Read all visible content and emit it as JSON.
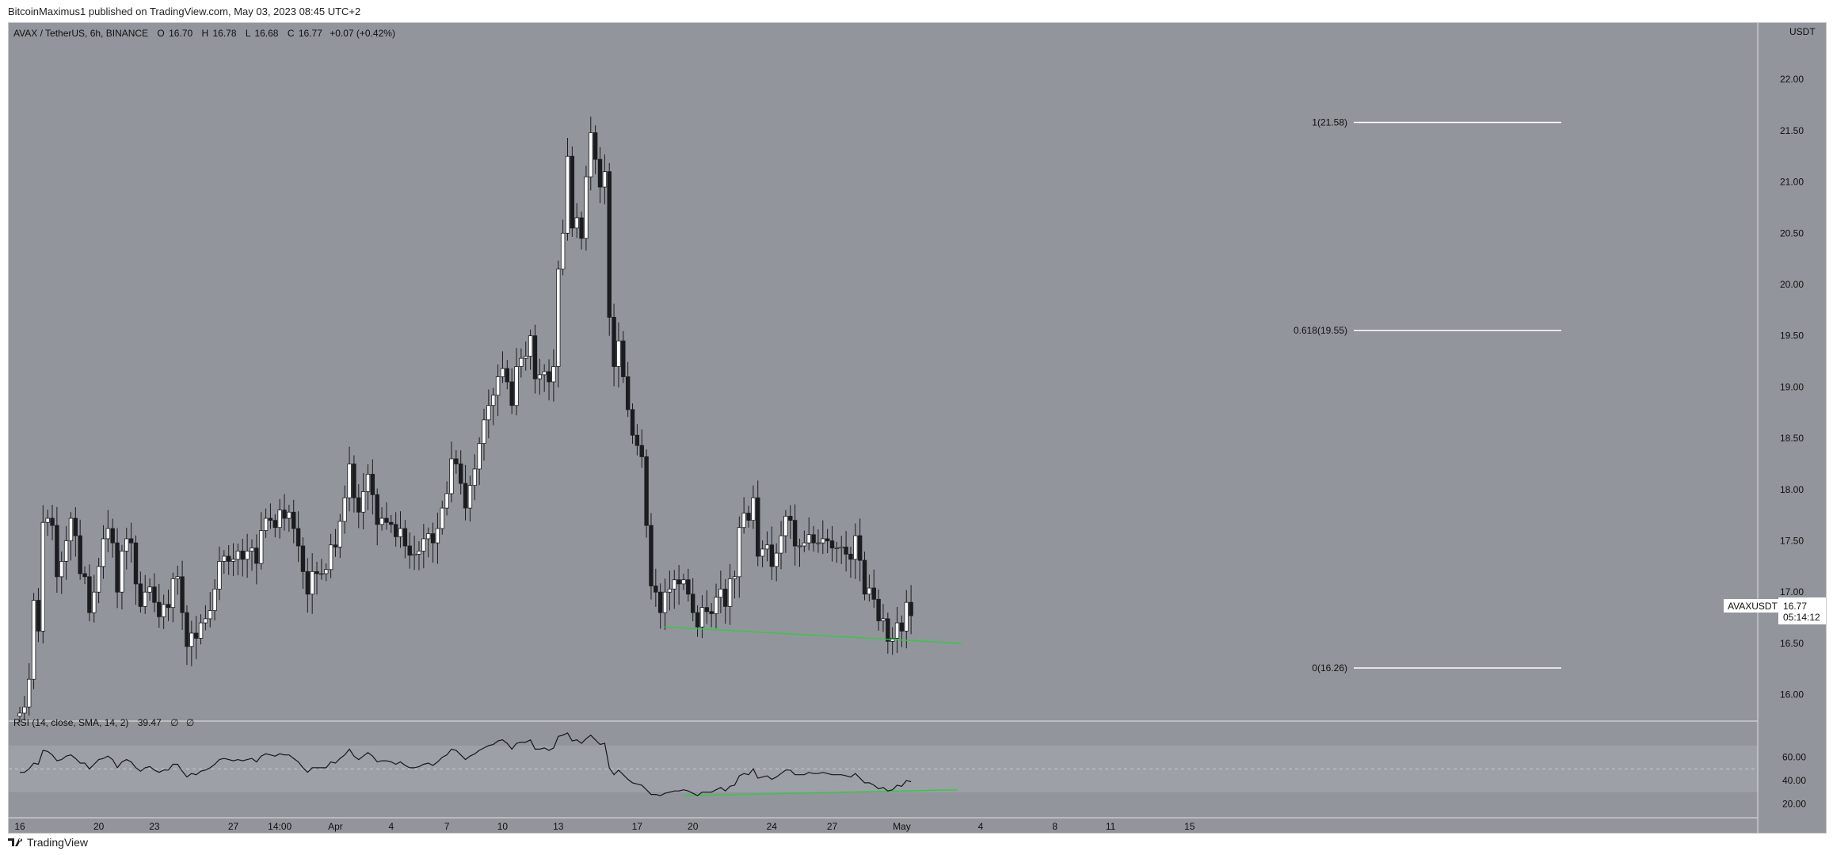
{
  "publisher_line": "BitcoinMaximus1 published on TradingView.com, May 03, 2023 08:45 UTC+2",
  "footer": {
    "brand": "TradingView"
  },
  "header": {
    "symbol": "AVAX / TetherUS, 6h, BINANCE",
    "o_label": "O",
    "o_value": "16.70",
    "h_label": "H",
    "h_value": "16.78",
    "l_label": "L",
    "l_value": "16.68",
    "c_label": "C",
    "c_value": "16.77",
    "change": "+0.07 (+0.42%)",
    "currency": "USDT"
  },
  "price_tag": {
    "symbol": "AVAXUSDT",
    "price": "16.77",
    "countdown": "05:14:12"
  },
  "rsi_header": {
    "text": "RSI (14, close, SMA, 14, 2)",
    "value": "39.47",
    "extra1": "∅",
    "extra2": "∅"
  },
  "colors": {
    "background": "#93959c",
    "up": "#ffffff",
    "down": "#1b1c20",
    "fib": "#ffffff",
    "divergence": "#2ecc40",
    "rsi_band": "#9da0a6"
  },
  "chart_data": [
    {
      "type": "candlestick",
      "title": "AVAX / TetherUS, 6h, BINANCE",
      "ylabel": "USDT",
      "ylim": [
        15.75,
        22.55
      ],
      "y_ticks": [
        "16.00",
        "16.50",
        "17.00",
        "17.50",
        "18.00",
        "18.50",
        "19.00",
        "19.50",
        "20.00",
        "20.50",
        "21.00",
        "21.50",
        "22.00"
      ],
      "x_ticks": [
        "16",
        "20",
        "23",
        "27",
        "14:00",
        "Apr",
        "4",
        "7",
        "10",
        "13",
        "17",
        "20",
        "24",
        "27",
        "May",
        "4",
        "8",
        "11",
        "15"
      ],
      "fib_levels": [
        {
          "label": "1(21.58)",
          "value": 21.58
        },
        {
          "label": "0.618(19.55)",
          "value": 19.55
        },
        {
          "label": "0(16.26)",
          "value": 16.26
        }
      ],
      "divergence_line": {
        "from": [
          139,
          16.66
        ],
        "to": [
          203,
          16.5
        ]
      },
      "series": [
        {
          "close": [
            15.82,
            15.88,
            16.15,
            16.92,
            16.62,
            17.68,
            17.72,
            17.65,
            17.15,
            17.3,
            17.5,
            17.72,
            17.55,
            17.18,
            17.15,
            16.8,
            17.0,
            17.25,
            17.52,
            17.62,
            17.48,
            17.0,
            17.4,
            17.52,
            17.48,
            17.08,
            16.86,
            17.0,
            17.05,
            16.9,
            16.76,
            16.88,
            16.85,
            17.13,
            17.15,
            16.8,
            16.47,
            16.6,
            16.55,
            16.7,
            16.74,
            16.82,
            17.03,
            17.3,
            17.35,
            17.3,
            17.32,
            17.4,
            17.32,
            17.4,
            17.43,
            17.28,
            17.6,
            17.72,
            17.7,
            17.63,
            17.8,
            17.72,
            17.78,
            17.62,
            17.45,
            17.2,
            16.98,
            17.2,
            17.18,
            17.18,
            17.22,
            17.46,
            17.44,
            17.69,
            17.92,
            18.25,
            17.92,
            17.78,
            17.98,
            18.15,
            17.95,
            17.66,
            17.72,
            17.68,
            17.66,
            17.54,
            17.62,
            17.45,
            17.36,
            17.37,
            17.4,
            17.52,
            17.57,
            17.48,
            17.62,
            17.82,
            17.96,
            18.3,
            18.25,
            18.06,
            17.82,
            18.04,
            18.2,
            18.45,
            18.68,
            18.82,
            18.92,
            19.1,
            19.18,
            19.05,
            18.82,
            19.2,
            19.28,
            19.3,
            19.5,
            19.08,
            19.12,
            19.15,
            19.05,
            19.2,
            20.15,
            20.5,
            21.25,
            20.55,
            20.65,
            20.45,
            21.05,
            21.48,
            21.22,
            20.95,
            21.1,
            19.68,
            19.2,
            19.45,
            19.1,
            18.78,
            18.53,
            18.43,
            18.32,
            17.65,
            17.06,
            17.0,
            16.8,
            17.0,
            17.03,
            17.12,
            17.08,
            17.12,
            16.98,
            16.8,
            16.66,
            16.85,
            16.81,
            16.79,
            16.95,
            17.03,
            16.86,
            17.13,
            17.15,
            17.63,
            17.77,
            17.7,
            17.92,
            17.35,
            17.42,
            17.46,
            17.25,
            17.38,
            17.55,
            17.74,
            17.7,
            17.45,
            17.45,
            17.48,
            17.56,
            17.48,
            17.48,
            17.52,
            17.5,
            17.43,
            17.43,
            17.44,
            17.37,
            17.32,
            17.55,
            17.31,
            16.98,
            17.04,
            16.93,
            16.72,
            16.74,
            16.52,
            16.55,
            16.7,
            16.62,
            16.9,
            16.77
          ]
        },
        {
          "name": "RSI",
          "values": [
            47,
            47,
            50,
            55,
            54,
            66,
            65,
            62,
            57,
            58,
            61,
            62,
            59,
            55,
            55,
            50,
            54,
            58,
            59,
            61,
            58,
            51,
            56,
            58,
            56,
            51,
            48,
            51,
            52,
            49,
            47,
            49,
            49,
            54,
            54,
            48,
            43,
            46,
            45,
            48,
            49,
            51,
            54,
            58,
            59,
            58,
            57,
            58,
            57,
            58,
            59,
            56,
            61,
            63,
            62,
            61,
            63,
            62,
            62,
            59,
            56,
            51,
            47,
            51,
            51,
            51,
            51,
            56,
            55,
            59,
            62,
            67,
            61,
            58,
            61,
            64,
            61,
            56,
            57,
            57,
            56,
            54,
            56,
            53,
            51,
            51,
            52,
            54,
            55,
            53,
            56,
            60,
            62,
            67,
            66,
            62,
            58,
            61,
            63,
            66,
            68,
            70,
            71,
            74,
            75,
            72,
            67,
            72,
            73,
            73,
            75,
            67,
            67,
            68,
            66,
            68,
            78,
            79,
            81,
            74,
            75,
            72,
            76,
            79,
            75,
            71,
            72,
            51,
            45,
            49,
            45,
            41,
            38,
            37,
            36,
            32,
            28,
            28,
            27,
            29,
            30,
            31,
            31,
            32,
            31,
            29,
            27,
            30,
            30,
            30,
            32,
            34,
            31,
            35,
            36,
            44,
            46,
            45,
            50,
            42,
            43,
            44,
            41,
            43,
            46,
            49,
            49,
            45,
            45,
            45,
            47,
            46,
            46,
            47,
            46,
            45,
            45,
            45,
            44,
            43,
            46,
            42,
            38,
            38,
            36,
            33,
            34,
            31,
            32,
            36,
            35,
            40,
            39
          ]
        }
      ]
    }
  ]
}
